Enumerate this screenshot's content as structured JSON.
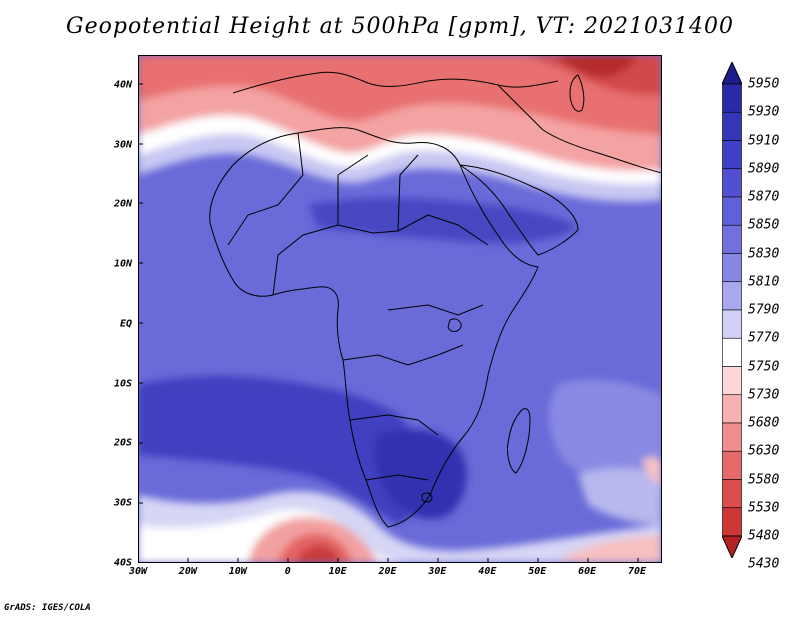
{
  "title": "Geopotential Height at 500hPa [gpm], VT: 2021031400",
  "credit": "GrADS: IGES/COLA",
  "map": {
    "lon_range": [
      -30,
      75
    ],
    "lat_range": [
      -40,
      45
    ],
    "lat_ticks": [
      {
        "value": 40,
        "label": "40N"
      },
      {
        "value": 30,
        "label": "30N"
      },
      {
        "value": 20,
        "label": "20N"
      },
      {
        "value": 10,
        "label": "10N"
      },
      {
        "value": 0,
        "label": "EQ"
      },
      {
        "value": -10,
        "label": "10S"
      },
      {
        "value": -20,
        "label": "20S"
      },
      {
        "value": -30,
        "label": "30S"
      },
      {
        "value": -40,
        "label": "40S"
      }
    ],
    "lon_ticks": [
      {
        "value": -30,
        "label": "30W"
      },
      {
        "value": -20,
        "label": "20W"
      },
      {
        "value": -10,
        "label": "10W"
      },
      {
        "value": 0,
        "label": "0"
      },
      {
        "value": 10,
        "label": "10E"
      },
      {
        "value": 20,
        "label": "20E"
      },
      {
        "value": 30,
        "label": "30E"
      },
      {
        "value": 40,
        "label": "40E"
      },
      {
        "value": 50,
        "label": "50E"
      },
      {
        "value": 60,
        "label": "60E"
      },
      {
        "value": 70,
        "label": "70E"
      }
    ]
  },
  "colorbar": {
    "labels": [
      "5950",
      "5930",
      "5910",
      "5890",
      "5870",
      "5850",
      "5830",
      "5810",
      "5790",
      "5770",
      "5750",
      "5730",
      "5680",
      "5630",
      "5580",
      "5530",
      "5480",
      "5430"
    ],
    "colors": [
      "#1c1c8c",
      "#2a2aa6",
      "#3535b8",
      "#4040c6",
      "#5050d0",
      "#6060d8",
      "#7070de",
      "#8787e4",
      "#a8a8ee",
      "#d0d0f6",
      "#ffffff",
      "#fbd6d6",
      "#f6b2b2",
      "#ef8c8c",
      "#e66a6a",
      "#dc4c4c",
      "#cf3636",
      "#b52020"
    ]
  }
}
